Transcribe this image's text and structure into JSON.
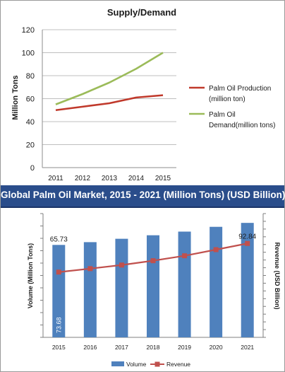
{
  "chart_data": [
    {
      "type": "line",
      "title": "Supply/Demand",
      "xlabel": "",
      "ylabel": "Million Tons",
      "ylim": [
        0,
        120
      ],
      "yticks": [
        0,
        20,
        40,
        60,
        80,
        100,
        120
      ],
      "x": [
        "2011",
        "2012",
        "2013",
        "2014",
        "2015"
      ],
      "grid": true,
      "legend": "right",
      "series": [
        {
          "name": "Palm Oil Production (million ton)",
          "color": "#c0392b",
          "values": [
            50,
            53,
            56,
            61,
            63
          ]
        },
        {
          "name": "Palm Oil Demand(million tons)",
          "color": "#9bbb59",
          "values": [
            55,
            64,
            74,
            86,
            100
          ]
        }
      ]
    },
    {
      "type": "bar",
      "title": "Global Palm Oil Market, 2015 - 2021 (Million Tons) (USD Billion)",
      "xlabel": "",
      "ylabel": "Volume (Million Tons)",
      "y2label": "Revenue (USD Billion)",
      "categories": [
        "2015",
        "2016",
        "2017",
        "2018",
        "2019",
        "2020",
        "2021"
      ],
      "legend": "bottom",
      "series": [
        {
          "name": "Volume",
          "type": "bar",
          "color": "#4f81bd",
          "axis": "left",
          "values": [
            65.73,
            67.7,
            70.1,
            72.6,
            75.2,
            78.6,
            81.4
          ]
        },
        {
          "name": "Revenue",
          "type": "line",
          "color": "#c0504d",
          "axis": "right",
          "values": [
            73.68,
            76.0,
            78.4,
            81.3,
            84.6,
            88.7,
            92.84
          ]
        }
      ],
      "data_labels": [
        {
          "text": "65.73",
          "series": "Volume",
          "index": 0
        },
        {
          "text": "73.68",
          "series": "Revenue",
          "index": 0
        },
        {
          "text": "92.84",
          "series": "Revenue",
          "index": 6
        }
      ]
    }
  ]
}
